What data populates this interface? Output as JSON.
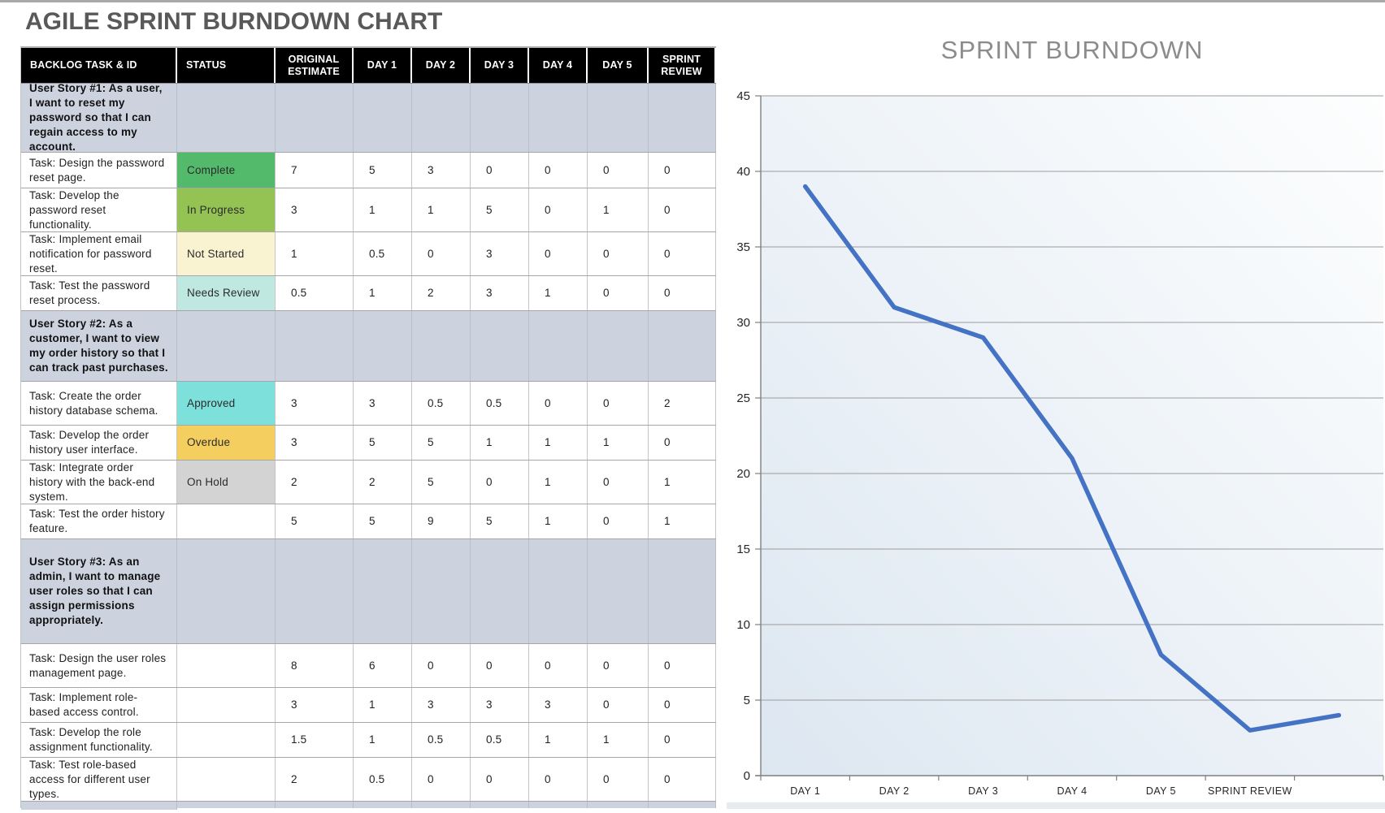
{
  "page": {
    "title": "AGILE SPRINT BURNDOWN CHART"
  },
  "table": {
    "headers": [
      "BACKLOG TASK & ID",
      "STATUS",
      "ORIGINAL ESTIMATE",
      "DAY 1",
      "DAY 2",
      "DAY 3",
      "DAY 4",
      "DAY 5",
      "SPRINT REVIEW"
    ],
    "status_colors": {
      "Complete": "#53b96b",
      "In Progress": "#94c353",
      "Not Started": "#faf3d2",
      "Needs Review": "#bfe9e0",
      "Approved": "#7ee0db",
      "Overdue": "#f4ce5f",
      "On Hold": "#d3d3d3"
    },
    "rows": [
      {
        "type": "story",
        "text": "User Story #1: As a user, I want to reset my password so that I can regain access to my account."
      },
      {
        "type": "task",
        "text": "Task: Design the password reset page.",
        "status": "Complete",
        "values": [
          "7",
          "5",
          "3",
          "0",
          "0",
          "0",
          "0"
        ]
      },
      {
        "type": "task",
        "text": "Task: Develop the password reset functionality.",
        "status": "In Progress",
        "values": [
          "3",
          "1",
          "1",
          "5",
          "0",
          "1",
          "0"
        ]
      },
      {
        "type": "task",
        "text": "Task: Implement email notification for password reset.",
        "status": "Not Started",
        "values": [
          "1",
          "0.5",
          "0",
          "3",
          "0",
          "0",
          "0"
        ]
      },
      {
        "type": "task",
        "text": "Task: Test the password reset process.",
        "status": "Needs Review",
        "values": [
          "0.5",
          "1",
          "2",
          "3",
          "1",
          "0",
          "0"
        ]
      },
      {
        "type": "story",
        "text": "User Story #2: As a customer, I want to view my order history so that I can track past purchases."
      },
      {
        "type": "task",
        "text": "Task: Create the order history database schema.",
        "status": "Approved",
        "values": [
          "3",
          "3",
          "0.5",
          "0.5",
          "0",
          "0",
          "2"
        ]
      },
      {
        "type": "task",
        "text": "Task: Develop the order history user interface.",
        "status": "Overdue",
        "values": [
          "3",
          "5",
          "5",
          "1",
          "1",
          "1",
          "0"
        ]
      },
      {
        "type": "task",
        "text": "Task: Integrate order history with the back-end system.",
        "status": "On Hold",
        "values": [
          "2",
          "2",
          "5",
          "0",
          "1",
          "0",
          "1"
        ]
      },
      {
        "type": "task",
        "text": "Task: Test the order history feature.",
        "status": "",
        "values": [
          "5",
          "5",
          "9",
          "5",
          "1",
          "0",
          "1"
        ]
      },
      {
        "type": "story",
        "text": "User Story #3: As an admin, I want to manage user roles so that I can assign permissions appropriately."
      },
      {
        "type": "task",
        "text": "Task: Design the user roles management page.",
        "status": "",
        "values": [
          "8",
          "6",
          "0",
          "0",
          "0",
          "0",
          "0"
        ]
      },
      {
        "type": "task",
        "text": "Task: Implement role-based access control.",
        "status": "",
        "values": [
          "3",
          "1",
          "3",
          "3",
          "3",
          "0",
          "0"
        ]
      },
      {
        "type": "task",
        "text": "Task: Develop the role assignment functionality.",
        "status": "",
        "values": [
          "1.5",
          "1",
          "0.5",
          "0.5",
          "1",
          "1",
          "0"
        ]
      },
      {
        "type": "task",
        "text": "Task: Test role-based access for different user types.",
        "status": "",
        "values": [
          "2",
          "0.5",
          "0",
          "0",
          "0",
          "0",
          "0"
        ]
      },
      {
        "type": "story",
        "text": ""
      }
    ]
  },
  "chart_data": {
    "type": "line",
    "title": "SPRINT BURNDOWN",
    "categories": [
      "DAY 1",
      "DAY 2",
      "DAY 3",
      "DAY 4",
      "DAY 5",
      "SPRINT REVIEW",
      ""
    ],
    "values": [
      39,
      31,
      29,
      21,
      8,
      3,
      4
    ],
    "ylim": [
      0,
      45
    ],
    "ytick_step": 5,
    "grid": true,
    "legend": "none",
    "line_color": "#4472c4",
    "gridline_color": "#9b9b9b",
    "axis_color": "#7f7f7f",
    "tick_label_color": "#262626",
    "plot_bg_gradient": [
      "#dde7f1",
      "#fdfefe"
    ]
  }
}
